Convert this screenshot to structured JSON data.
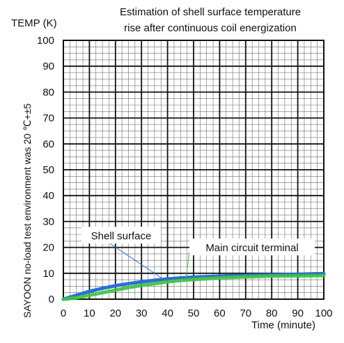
{
  "chart_data": {
    "type": "line",
    "title_lines": [
      "Estimation of shell surface temperature",
      "rise after continuous coil energization"
    ],
    "ylabel": "TEMP (K)",
    "xlabel": "Time (minute)",
    "side_note": "SAYOON no-load test environment was 20  ℃+±5",
    "xlim": [
      0,
      100
    ],
    "ylim": [
      0,
      100
    ],
    "x_ticks": [
      "0",
      "10",
      "20",
      "30",
      "40",
      "50",
      "60",
      "70",
      "80",
      "90",
      "100"
    ],
    "y_ticks": [
      "0",
      "10",
      "20",
      "30",
      "40",
      "50",
      "60",
      "70",
      "80",
      "90",
      "100"
    ],
    "grid": true,
    "series": [
      {
        "name": "Shell surface",
        "color": "#2c6fd6",
        "x": [
          0,
          5,
          10,
          15,
          20,
          25,
          30,
          35,
          40,
          45,
          50,
          60,
          70,
          80,
          90,
          100
        ],
        "y": [
          0,
          1.5,
          3.0,
          4.2,
          5.2,
          6.0,
          6.7,
          7.3,
          7.8,
          8.2,
          8.5,
          8.9,
          9.2,
          9.4,
          9.6,
          9.9
        ]
      },
      {
        "name": "Main circuit terminal",
        "color": "#3ec43e",
        "x": [
          0,
          5,
          10,
          15,
          20,
          25,
          30,
          35,
          40,
          45,
          50,
          60,
          70,
          80,
          90,
          100
        ],
        "y": [
          0,
          0.5,
          1.5,
          2.5,
          3.5,
          4.5,
          5.3,
          6.0,
          6.7,
          7.2,
          7.6,
          8.2,
          8.6,
          8.9,
          9.0,
          9.1
        ]
      }
    ],
    "annotations": [
      {
        "text": "Shell surface",
        "series": 0,
        "x": 38,
        "y": 8.0
      },
      {
        "text": "Main circuit terminal",
        "series": 1,
        "x": 47,
        "y": 7.4
      }
    ]
  }
}
